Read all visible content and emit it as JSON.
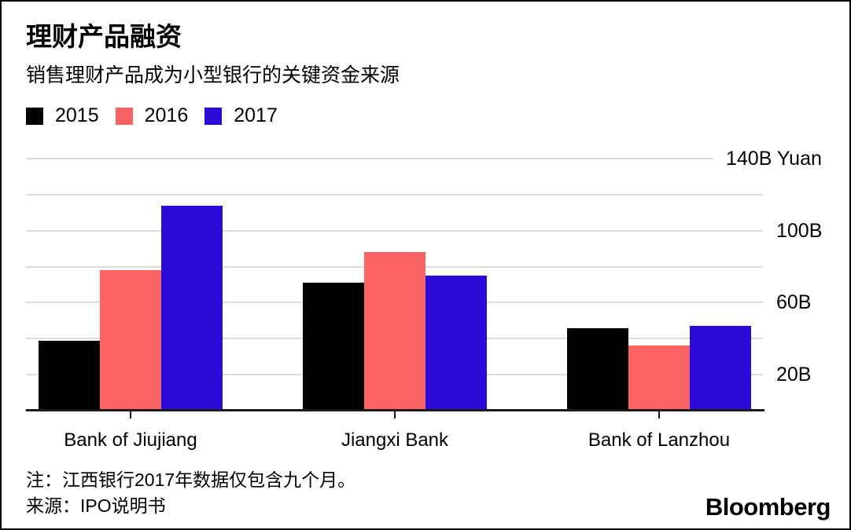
{
  "header": {
    "title": "理财产品融资",
    "subtitle": "销售理财产品成为小型银行的关键资金来源"
  },
  "chart_data": {
    "type": "bar",
    "title": "理财产品融资",
    "subtitle": "销售理财产品成为小型银行的关键资金来源",
    "unit": "B Yuan",
    "categories": [
      "Bank of Jiujiang",
      "Jiangxi Bank",
      "Bank of Lanzhou"
    ],
    "series": [
      {
        "name": "2015",
        "color": "#000000",
        "values": [
          39,
          71,
          46
        ]
      },
      {
        "name": "2016",
        "color": "#FC6364",
        "values": [
          78,
          88,
          36
        ]
      },
      {
        "name": "2017",
        "color": "#2A0BD8",
        "values": [
          114,
          75,
          47
        ]
      }
    ],
    "ylim": [
      0,
      140
    ],
    "ytick_step": 20,
    "ytick_labels": {
      "140": "140B Yuan",
      "100": "100B",
      "60": "60B",
      "20": "20B"
    },
    "legend_position": "top-left",
    "grid": "horizontal",
    "colors": {
      "grid": "#DDDDDD",
      "axis": "#1A1A1A",
      "text": "#000000",
      "background": "#FFFFFF"
    }
  },
  "footer": {
    "note": "注：江西银行2017年数据仅包含九个月。",
    "source": "来源：IPO说明书",
    "brand": "Bloomberg"
  }
}
